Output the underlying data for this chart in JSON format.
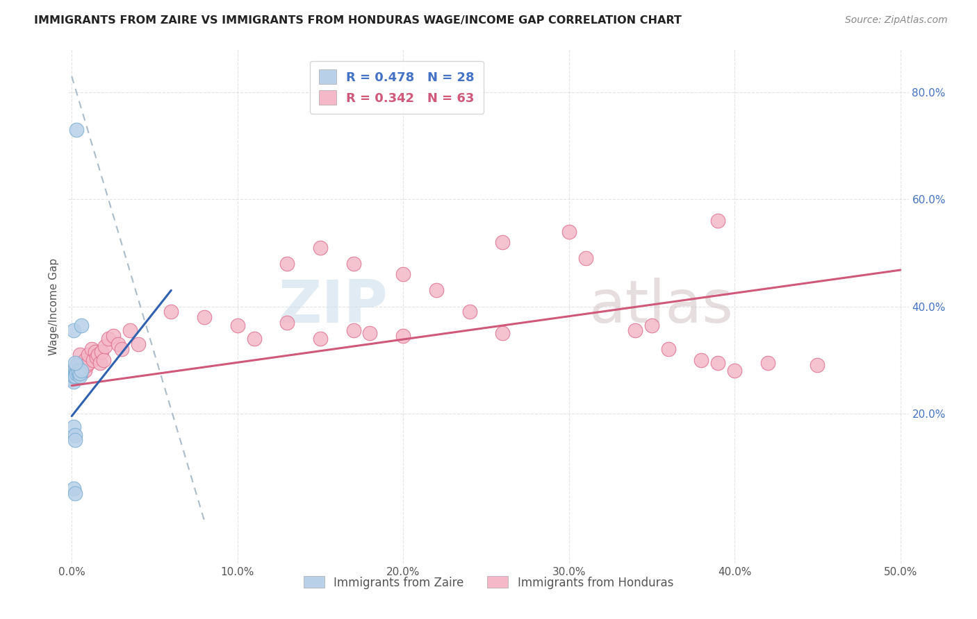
{
  "title": "IMMIGRANTS FROM ZAIRE VS IMMIGRANTS FROM HONDURAS WAGE/INCOME GAP CORRELATION CHART",
  "source": "Source: ZipAtlas.com",
  "ylabel": "Wage/Income Gap",
  "xlim": [
    -0.002,
    0.505
  ],
  "ylim": [
    -0.08,
    0.88
  ],
  "xtick_labels": [
    "0.0%",
    "10.0%",
    "20.0%",
    "30.0%",
    "40.0%",
    "50.0%"
  ],
  "xtick_values": [
    0.0,
    0.1,
    0.2,
    0.3,
    0.4,
    0.5
  ],
  "ytick_labels": [
    "20.0%",
    "40.0%",
    "60.0%",
    "80.0%"
  ],
  "ytick_values": [
    0.2,
    0.4,
    0.6,
    0.8
  ],
  "zaire_color": "#b8d0e8",
  "zaire_edge_color": "#7aafd4",
  "zaire_line_color": "#3060b0",
  "honduras_color": "#f4b8c8",
  "honduras_edge_color": "#e07090",
  "honduras_line_color": "#d05878",
  "R_zaire": 0.478,
  "N_zaire": 28,
  "R_honduras": 0.342,
  "N_honduras": 63,
  "watermark_zip": "ZIP",
  "watermark_atlas": "atlas",
  "legend_zaire_label": "Immigrants from Zaire",
  "legend_honduras_label": "Immigrants from Honduras",
  "zaire_points": [
    [
      0.0,
      0.27
    ],
    [
      0.0,
      0.265
    ],
    [
      0.001,
      0.275
    ],
    [
      0.001,
      0.28
    ],
    [
      0.001,
      0.265
    ],
    [
      0.001,
      0.26
    ],
    [
      0.001,
      0.27
    ],
    [
      0.002,
      0.275
    ],
    [
      0.002,
      0.28
    ],
    [
      0.002,
      0.27
    ],
    [
      0.002,
      0.285
    ],
    [
      0.003,
      0.28
    ],
    [
      0.003,
      0.275
    ],
    [
      0.003,
      0.29
    ],
    [
      0.004,
      0.275
    ],
    [
      0.004,
      0.28
    ],
    [
      0.005,
      0.27
    ],
    [
      0.005,
      0.275
    ],
    [
      0.006,
      0.28
    ],
    [
      0.001,
      0.355
    ],
    [
      0.002,
      0.295
    ],
    [
      0.001,
      0.175
    ],
    [
      0.002,
      0.16
    ],
    [
      0.002,
      0.15
    ],
    [
      0.001,
      0.06
    ],
    [
      0.002,
      0.05
    ],
    [
      0.003,
      0.73
    ],
    [
      0.006,
      0.365
    ]
  ],
  "honduras_points": [
    [
      0.0,
      0.27
    ],
    [
      0.001,
      0.28
    ],
    [
      0.001,
      0.275
    ],
    [
      0.002,
      0.285
    ],
    [
      0.002,
      0.27
    ],
    [
      0.003,
      0.28
    ],
    [
      0.003,
      0.285
    ],
    [
      0.004,
      0.29
    ],
    [
      0.004,
      0.275
    ],
    [
      0.005,
      0.28
    ],
    [
      0.005,
      0.31
    ],
    [
      0.006,
      0.285
    ],
    [
      0.006,
      0.275
    ],
    [
      0.007,
      0.295
    ],
    [
      0.007,
      0.285
    ],
    [
      0.008,
      0.3
    ],
    [
      0.008,
      0.28
    ],
    [
      0.009,
      0.29
    ],
    [
      0.01,
      0.295
    ],
    [
      0.01,
      0.31
    ],
    [
      0.012,
      0.32
    ],
    [
      0.013,
      0.3
    ],
    [
      0.014,
      0.315
    ],
    [
      0.015,
      0.305
    ],
    [
      0.016,
      0.31
    ],
    [
      0.017,
      0.295
    ],
    [
      0.018,
      0.315
    ],
    [
      0.019,
      0.3
    ],
    [
      0.02,
      0.325
    ],
    [
      0.022,
      0.34
    ],
    [
      0.025,
      0.345
    ],
    [
      0.028,
      0.33
    ],
    [
      0.03,
      0.32
    ],
    [
      0.035,
      0.355
    ],
    [
      0.04,
      0.33
    ],
    [
      0.06,
      0.39
    ],
    [
      0.08,
      0.38
    ],
    [
      0.1,
      0.365
    ],
    [
      0.11,
      0.34
    ],
    [
      0.13,
      0.37
    ],
    [
      0.15,
      0.34
    ],
    [
      0.17,
      0.355
    ],
    [
      0.18,
      0.35
    ],
    [
      0.2,
      0.345
    ],
    [
      0.13,
      0.48
    ],
    [
      0.15,
      0.51
    ],
    [
      0.17,
      0.48
    ],
    [
      0.2,
      0.46
    ],
    [
      0.22,
      0.43
    ],
    [
      0.24,
      0.39
    ],
    [
      0.26,
      0.35
    ],
    [
      0.26,
      0.52
    ],
    [
      0.3,
      0.54
    ],
    [
      0.31,
      0.49
    ],
    [
      0.34,
      0.355
    ],
    [
      0.35,
      0.365
    ],
    [
      0.36,
      0.32
    ],
    [
      0.38,
      0.3
    ],
    [
      0.39,
      0.295
    ],
    [
      0.39,
      0.56
    ],
    [
      0.4,
      0.28
    ],
    [
      0.42,
      0.295
    ],
    [
      0.45,
      0.29
    ]
  ],
  "zaire_line": [
    [
      0.0,
      0.195
    ],
    [
      0.06,
      0.43
    ]
  ],
  "honduras_line": [
    [
      0.0,
      0.252
    ],
    [
      0.5,
      0.468
    ]
  ],
  "dashed_line": [
    [
      0.0,
      0.83
    ],
    [
      0.08,
      0.0
    ]
  ],
  "background_color": "#ffffff",
  "grid_color": "#d8d8d8"
}
